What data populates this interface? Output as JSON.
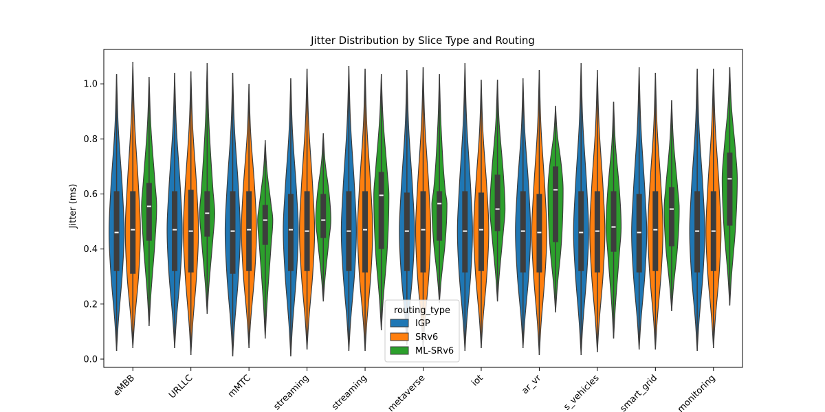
{
  "chart_data": {
    "type": "violin",
    "title": "Jitter Distribution by Slice Type and Routing",
    "xlabel": "",
    "ylabel": "Jitter (ms)",
    "ylim": [
      -0.03,
      1.125
    ],
    "yticks": [
      0.0,
      0.2,
      0.4,
      0.6,
      0.8,
      1.0
    ],
    "ytick_labels": [
      "0.0",
      "0.2",
      "0.4",
      "0.6",
      "0.8",
      "1.0"
    ],
    "categories": [
      "eMBB",
      "URLLC",
      "mMTC",
      "streaming",
      "streaming",
      "metaverse",
      "iot",
      "ar_vr",
      "s_vehicles",
      "smart_grid",
      "monitoring"
    ],
    "legend": {
      "title": "routing_type",
      "position": "lower center"
    },
    "colors": {
      "IGP": "#1f77b4",
      "SRv6": "#ff7f0e",
      "ML-SRv6": "#2ca02c",
      "box": "#3d3d3d",
      "edge": "#3d3d3d",
      "median": "#ffffff"
    },
    "series": [
      {
        "name": "IGP",
        "min": [
          0.03,
          0.04,
          0.01,
          0.01,
          0.03,
          0.05,
          0.03,
          0.04,
          0.015,
          0.035,
          0.03
        ],
        "q1": [
          0.32,
          0.32,
          0.31,
          0.32,
          0.32,
          0.32,
          0.315,
          0.315,
          0.32,
          0.315,
          0.315
        ],
        "median": [
          0.46,
          0.47,
          0.465,
          0.47,
          0.465,
          0.465,
          0.465,
          0.465,
          0.46,
          0.46,
          0.465
        ],
        "q3": [
          0.61,
          0.61,
          0.61,
          0.6,
          0.61,
          0.605,
          0.61,
          0.61,
          0.61,
          0.6,
          0.61
        ],
        "max": [
          1.035,
          1.04,
          1.04,
          1.02,
          1.065,
          1.05,
          1.075,
          1.02,
          1.075,
          1.06,
          1.055
        ]
      },
      {
        "name": "SRv6",
        "min": [
          0.04,
          0.015,
          0.04,
          0.035,
          0.03,
          0.035,
          0.04,
          0.015,
          0.025,
          0.035,
          0.04
        ],
        "q1": [
          0.31,
          0.315,
          0.32,
          0.32,
          0.315,
          0.315,
          0.32,
          0.315,
          0.315,
          0.32,
          0.32
        ],
        "median": [
          0.47,
          0.465,
          0.47,
          0.465,
          0.47,
          0.47,
          0.47,
          0.46,
          0.465,
          0.47,
          0.465
        ],
        "q3": [
          0.61,
          0.615,
          0.61,
          0.61,
          0.61,
          0.61,
          0.605,
          0.6,
          0.61,
          0.61,
          0.61
        ],
        "max": [
          1.08,
          1.045,
          1.0,
          1.055,
          1.055,
          1.06,
          1.015,
          1.05,
          1.05,
          1.04,
          1.055
        ]
      },
      {
        "name": "ML-SRv6",
        "min": [
          0.12,
          0.165,
          0.075,
          0.21,
          0.105,
          0.205,
          0.21,
          0.17,
          0.075,
          0.175,
          0.195
        ],
        "q1": [
          0.43,
          0.445,
          0.415,
          0.44,
          0.4,
          0.43,
          0.465,
          0.425,
          0.39,
          0.41,
          0.485
        ],
        "median": [
          0.555,
          0.53,
          0.505,
          0.505,
          0.595,
          0.565,
          0.545,
          0.615,
          0.48,
          0.545,
          0.655
        ],
        "q3": [
          0.64,
          0.61,
          0.56,
          0.6,
          0.68,
          0.61,
          0.67,
          0.7,
          0.61,
          0.625,
          0.75
        ],
        "max": [
          1.025,
          1.075,
          0.795,
          0.82,
          1.035,
          1.035,
          1.015,
          0.92,
          0.935,
          0.94,
          1.06
        ]
      }
    ]
  }
}
